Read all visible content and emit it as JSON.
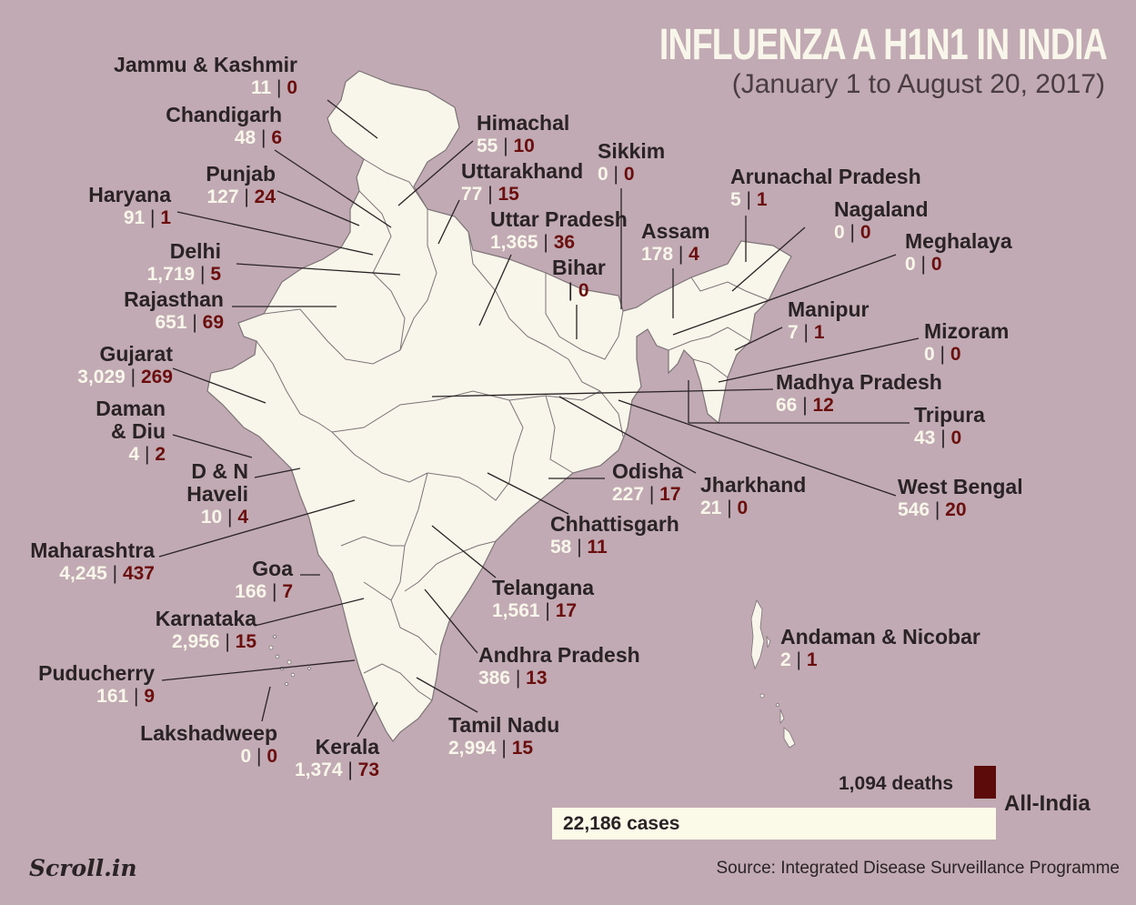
{
  "title": "INFLUENZA A H1N1 IN INDIA",
  "subtitle": "(January 1 to August 20, 2017)",
  "colors": {
    "background": "#c1aab3",
    "land": "#f8f6ea",
    "border": "#7d7378",
    "cases": "#f8f6ea",
    "deaths": "#6b0e0e"
  },
  "map_view": {
    "region": "India",
    "projection": "equirectangular"
  },
  "states": [
    {
      "name": "Jammu & Kashmir",
      "cases": "11",
      "deaths": "0"
    },
    {
      "name": "Chandigarh",
      "cases": "48",
      "deaths": "6"
    },
    {
      "name": "Punjab",
      "cases": "127",
      "deaths": "24"
    },
    {
      "name": "Haryana",
      "cases": "91",
      "deaths": "1"
    },
    {
      "name": "Delhi",
      "cases": "1,719",
      "deaths": "5"
    },
    {
      "name": "Rajasthan",
      "cases": "651",
      "deaths": "69"
    },
    {
      "name": "Gujarat",
      "cases": "3,029",
      "deaths": "269"
    },
    {
      "name": "Daman\n& Diu",
      "cases": "4",
      "deaths": "2"
    },
    {
      "name": "D & N\nHaveli",
      "cases": "10",
      "deaths": "4"
    },
    {
      "name": "Maharashtra",
      "cases": "4,245",
      "deaths": "437"
    },
    {
      "name": "Goa",
      "cases": "166",
      "deaths": "7"
    },
    {
      "name": "Karnataka",
      "cases": "2,956",
      "deaths": "15"
    },
    {
      "name": "Puducherry",
      "cases": "161",
      "deaths": "9"
    },
    {
      "name": "Lakshadweep",
      "cases": "0",
      "deaths": "0"
    },
    {
      "name": "Kerala",
      "cases": "1,374",
      "deaths": "73"
    },
    {
      "name": "Himachal",
      "cases": "55",
      "deaths": "10"
    },
    {
      "name": "Uttarakhand",
      "cases": "77",
      "deaths": "15"
    },
    {
      "name": "Uttar Pradesh",
      "cases": "1,365",
      "deaths": "36"
    },
    {
      "name": "Sikkim",
      "cases": "0",
      "deaths": "0"
    },
    {
      "name": "Bihar",
      "cases": "3",
      "deaths": "0"
    },
    {
      "name": "Assam",
      "cases": "178",
      "deaths": "4"
    },
    {
      "name": "Arunachal Pradesh",
      "cases": "5",
      "deaths": "1"
    },
    {
      "name": "Nagaland",
      "cases": "0",
      "deaths": "0"
    },
    {
      "name": "Meghalaya",
      "cases": "0",
      "deaths": "0"
    },
    {
      "name": "Manipur",
      "cases": "7",
      "deaths": "1"
    },
    {
      "name": "Mizoram",
      "cases": "0",
      "deaths": "0"
    },
    {
      "name": "Madhya Pradesh",
      "cases": "66",
      "deaths": "12"
    },
    {
      "name": "Tripura",
      "cases": "43",
      "deaths": "0"
    },
    {
      "name": "West Bengal",
      "cases": "546",
      "deaths": "20"
    },
    {
      "name": "Jharkhand",
      "cases": "21",
      "deaths": "0"
    },
    {
      "name": "Odisha",
      "cases": "227",
      "deaths": "17"
    },
    {
      "name": "Chhattisgarh",
      "cases": "58",
      "deaths": "11"
    },
    {
      "name": "Telangana",
      "cases": "1,561",
      "deaths": "17"
    },
    {
      "name": "Andhra Pradesh",
      "cases": "386",
      "deaths": "13"
    },
    {
      "name": "Tamil Nadu",
      "cases": "2,994",
      "deaths": "15"
    },
    {
      "name": "Andaman & Nicobar",
      "cases": "2",
      "deaths": "1"
    }
  ],
  "separator": "|",
  "all_india": {
    "label": "All-India",
    "deaths_label": "1,094 deaths",
    "cases_label": "22,186 cases",
    "deaths": 1094,
    "cases": 22186
  },
  "source": "Source: Integrated Disease Surveillance Programme",
  "logo": "Scroll.in"
}
